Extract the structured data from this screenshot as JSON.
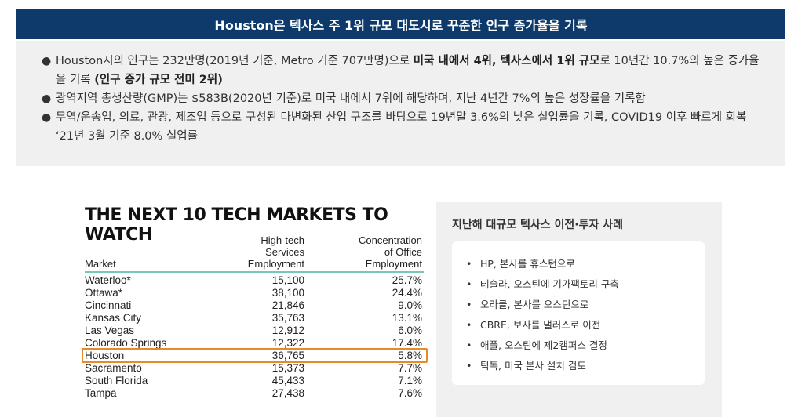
{
  "header": {
    "title": "Houston은 텍사스 주 1위 규모 대도시로 꾸준한 인구 증가율을 기록"
  },
  "summary": {
    "bullets": [
      {
        "pre": "Houston시의 인구는 232만명(2019년 기준, Metro 기준 707만명)으로 ",
        "bold1": "미국 내에서 4위, 텍사스에서 1위 규모",
        "mid": "로 10년간 10.7%의 높은 증가율을 기록 ",
        "bold2": "(인구 증가 규모 전미 2위)"
      },
      {
        "text": "광역지역 총생산량(GMP)는 $583B(2020년 기준)로 미국 내에서 7위에 해당하며, 지난 4년간 7%의 높은 성장률을 기록함"
      },
      {
        "text": "무역/운송업, 의료, 관광, 제조업 등으로 구성된 다변화된 산업 구조를 바탕으로 19년말 3.6%의 낮은 실업률을 기록, COVID19 이후 빠르게 회복 ‘21년 3월 기준 8.0% 실업률"
      }
    ]
  },
  "tech_markets": {
    "title": "THE NEXT 10 TECH MARKETS TO WATCH",
    "headers": {
      "market": "Market",
      "employment_l1": "High-tech",
      "employment_l2": "Services",
      "employment_l3": "Employment",
      "concentration_l1": "Concentration",
      "concentration_l2": "of Office",
      "concentration_l3": "Employment"
    },
    "rows": [
      {
        "market": "Waterloo*",
        "employment": "15,100",
        "concentration": "25.7%"
      },
      {
        "market": "Ottawa*",
        "employment": "38,100",
        "concentration": "24.4%"
      },
      {
        "market": "Cincinnati",
        "employment": "21,846",
        "concentration": "9.0%"
      },
      {
        "market": "Kansas City",
        "employment": "35,763",
        "concentration": "13.1%"
      },
      {
        "market": "Las Vegas",
        "employment": "12,912",
        "concentration": "6.0%"
      },
      {
        "market": "Colorado Springs",
        "employment": "12,322",
        "concentration": "17.4%"
      },
      {
        "market": "Houston",
        "employment": "36,765",
        "concentration": "5.8%"
      },
      {
        "market": "Sacramento",
        "employment": "15,373",
        "concentration": "7.7%"
      },
      {
        "market": "South Florida",
        "employment": "45,433",
        "concentration": "7.1%"
      },
      {
        "market": "Tampa",
        "employment": "27,438",
        "concentration": "7.6%"
      }
    ],
    "highlighted_market": "Houston",
    "highlight_color": "#e8892a",
    "rule_color": "#7ac7b8"
  },
  "relocations": {
    "title": "지난해 대규모 텍사스 이전·투자 사례",
    "items": [
      "HP, 본사를 휴스턴으로",
      "테슬라, 오스틴에 기가팩토리 구축",
      "오라클, 본사를 오스틴으로",
      "CBRE, 보사를 댈러스로 이전",
      "애플, 오스틴에 제2캠퍼스 결정",
      "틱톡, 미국 본사 설치 검토"
    ]
  },
  "colors": {
    "header_bg": "#0d3a6b",
    "panel_bg": "#f0f0f0"
  }
}
